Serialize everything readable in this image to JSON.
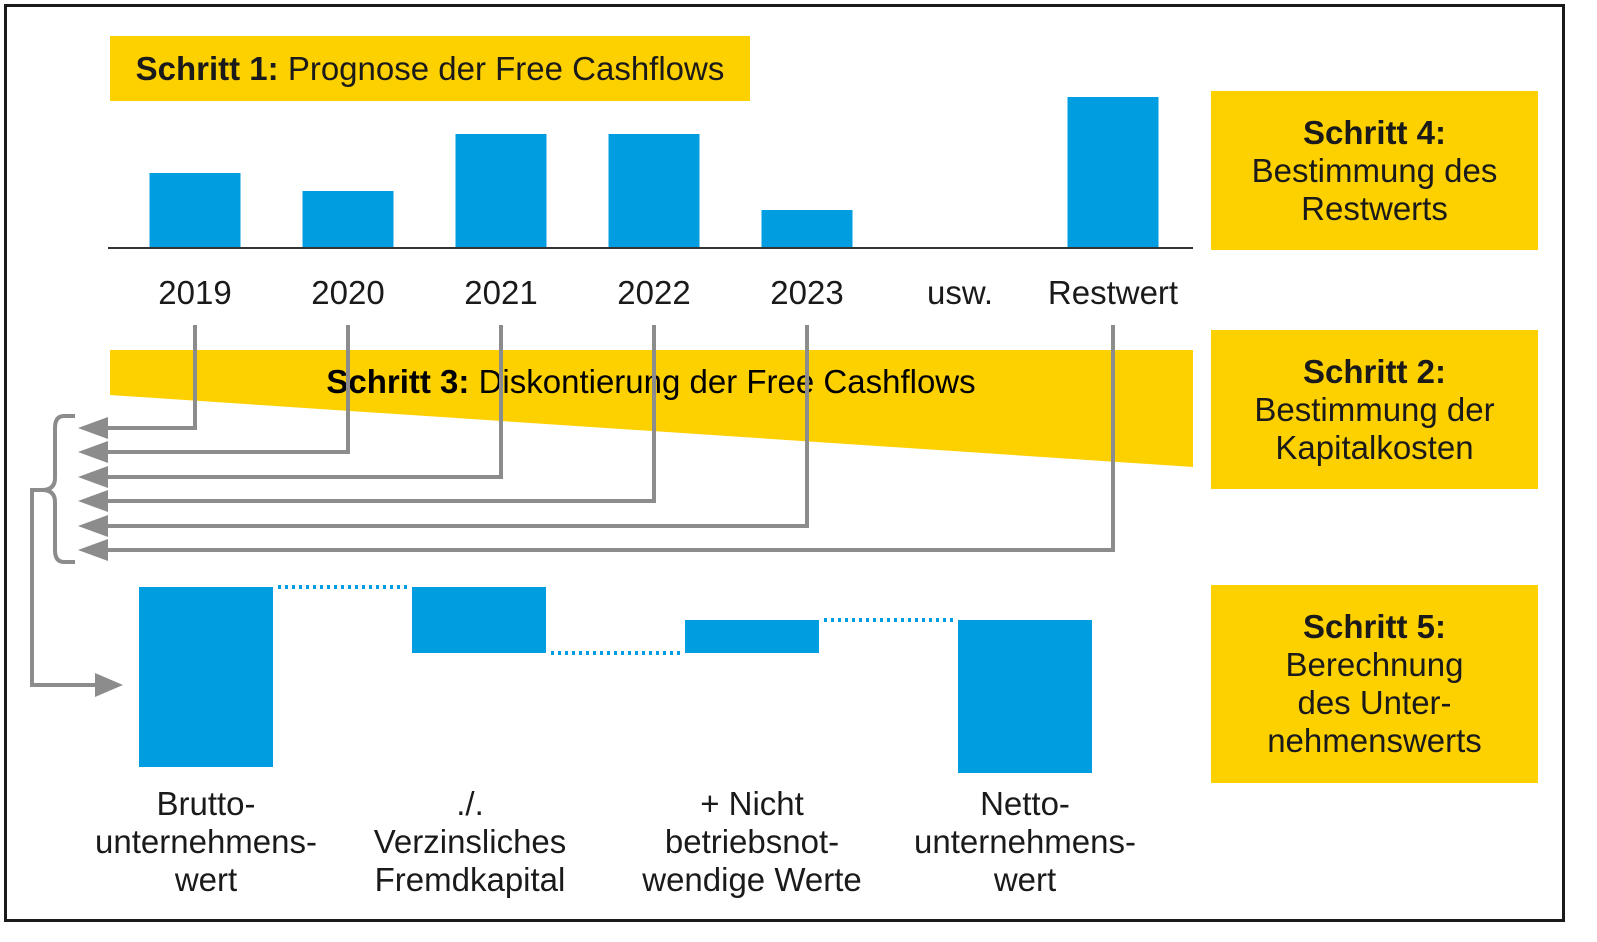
{
  "step1": {
    "head": "Schritt 1:",
    "text": "Prognose der Free Cashflows"
  },
  "step2": {
    "head": "Schritt 2:",
    "lines": [
      "Bestimmung der",
      "Kapitalkosten"
    ]
  },
  "step3": {
    "head": "Schritt 3:",
    "text": "Diskontierung der Free Cashflows"
  },
  "step4": {
    "head": "Schritt 4:",
    "lines": [
      "Bestimmung des",
      "Restwerts"
    ]
  },
  "step5": {
    "head": "Schritt 5:",
    "lines": [
      "Berechnung",
      "des Unter-",
      "nehmenswerts"
    ]
  },
  "colors": {
    "bar": "#009ee0",
    "yellow": "#fdd000",
    "arrow": "#8c8c8c"
  },
  "chart_data": [
    {
      "type": "bar",
      "categories": [
        "2019",
        "2020",
        "2021",
        "2022",
        "2023",
        "usw.",
        "Restwert"
      ],
      "values": [
        75,
        57,
        114,
        114,
        38,
        null,
        151
      ]
    },
    {
      "type": "bar",
      "categories": [
        [
          "Brutto-",
          "unternehmens-",
          "wert"
        ],
        [
          "./.",
          "Verzinsliches",
          "Fremdkapital"
        ],
        [
          "+ Nicht",
          "betriebsnot-",
          "wendige Werte"
        ],
        [
          "Netto-",
          "unternehmens-",
          "wert"
        ]
      ],
      "values": [
        180,
        -66,
        33,
        147
      ]
    }
  ]
}
